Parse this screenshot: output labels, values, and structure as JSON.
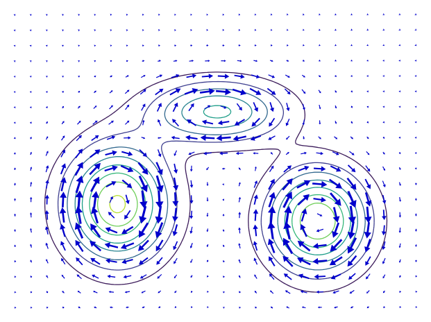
{
  "chart_data": {
    "type": "contour+quiver",
    "title": "",
    "xlabel": "",
    "ylabel": "",
    "xlim": [
      0,
      1
    ],
    "ylim": [
      0,
      1
    ],
    "grid": false,
    "colormap": "viridis",
    "arrow_color": "#0000cc",
    "contour_colors": [
      "#3b1a5a",
      "#3e3f8f",
      "#31688e",
      "#26838f",
      "#1f9e89",
      "#35b779",
      "#6ece58",
      "#b5de2b"
    ],
    "contour_levels": [
      0.1,
      0.2,
      0.3,
      0.4,
      0.5,
      0.6,
      0.7,
      0.8
    ],
    "field": {
      "description_hidden": true,
      "gaussians": [
        {
          "cx": 0.265,
          "cy": 0.36,
          "sx": 0.12,
          "sy": 0.18,
          "amp": 0.82
        },
        {
          "cx": 0.505,
          "cy": 0.66,
          "sx": 0.16,
          "sy": 0.1,
          "amp": 0.52
        },
        {
          "cx": 0.745,
          "cy": 0.305,
          "sx": 0.115,
          "sy": 0.16,
          "amp": 0.8
        }
      ]
    },
    "quiver_grid": {
      "nx": 26,
      "ny": 20
    }
  }
}
